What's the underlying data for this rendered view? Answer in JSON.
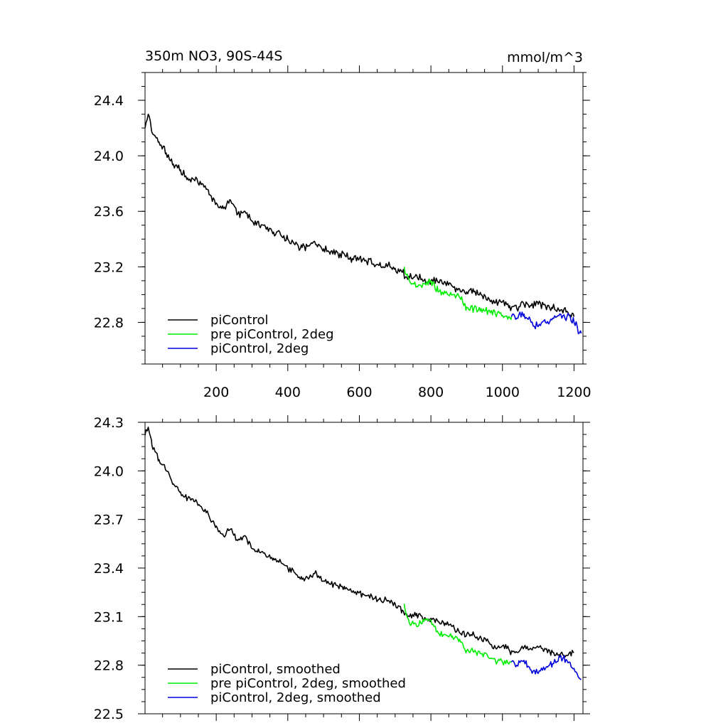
{
  "figure": {
    "title_left": "350m NO3, 90S-44S",
    "title_right": "mmol/m^3"
  },
  "chart_data": [
    {
      "type": "line",
      "panel": "top",
      "title": "350m NO3, 90S-44S",
      "units": "mmol/m^3",
      "xlim": [
        1,
        1225
      ],
      "ylim": [
        22.5,
        24.6
      ],
      "xticks": [
        200,
        400,
        600,
        800,
        1000,
        1200
      ],
      "yticks": [
        22.8,
        23.2,
        23.6,
        24.0,
        24.4
      ],
      "ytick_labels": [
        "22.8",
        "23.2",
        "23.6",
        "24.0",
        "24.4"
      ],
      "grid": false,
      "legend_position": "bottom-left",
      "series": [
        {
          "name": "piControl",
          "color": "#000000",
          "x": [
            1,
            10,
            20,
            40,
            60,
            80,
            100,
            120,
            140,
            160,
            180,
            200,
            220,
            240,
            260,
            280,
            300,
            320,
            340,
            360,
            380,
            400,
            420,
            440,
            460,
            480,
            500,
            520,
            540,
            560,
            580,
            600,
            620,
            640,
            660,
            680,
            700,
            720,
            740,
            760,
            780,
            800,
            820,
            840,
            860,
            880,
            900,
            920,
            940,
            960,
            980,
            1000,
            1020,
            1040,
            1060,
            1080,
            1100,
            1120,
            1140,
            1160,
            1180,
            1200
          ],
          "y": [
            24.2,
            24.3,
            24.17,
            24.1,
            24.02,
            23.94,
            23.9,
            23.84,
            23.82,
            23.8,
            23.72,
            23.66,
            23.62,
            23.68,
            23.58,
            23.6,
            23.53,
            23.5,
            23.47,
            23.45,
            23.43,
            23.4,
            23.36,
            23.34,
            23.35,
            23.36,
            23.33,
            23.31,
            23.3,
            23.28,
            23.26,
            23.26,
            23.24,
            23.22,
            23.2,
            23.21,
            23.19,
            23.16,
            23.12,
            23.14,
            23.1,
            23.1,
            23.09,
            23.09,
            23.06,
            23.04,
            23.02,
            23.02,
            23.0,
            22.98,
            22.94,
            22.95,
            22.92,
            22.9,
            22.93,
            22.92,
            22.93,
            22.92,
            22.9,
            22.88,
            22.88,
            22.84
          ]
        },
        {
          "name": "pre piControl, 2deg",
          "color": "#00ee00",
          "x": [
            725,
            740,
            760,
            780,
            800,
            820,
            840,
            860,
            880,
            900,
            920,
            940,
            960,
            980,
            1000,
            1025
          ],
          "y": [
            23.2,
            23.1,
            23.06,
            23.08,
            23.1,
            23.02,
            23.01,
            23.0,
            22.98,
            22.91,
            22.9,
            22.9,
            22.88,
            22.86,
            22.85,
            22.84
          ]
        },
        {
          "name": "piControl, 2deg",
          "color": "#0000dd",
          "x": [
            1025,
            1040,
            1060,
            1080,
            1100,
            1120,
            1140,
            1160,
            1180,
            1200,
            1220
          ],
          "y": [
            22.84,
            22.83,
            22.86,
            22.8,
            22.77,
            22.8,
            22.83,
            22.86,
            22.84,
            22.8,
            22.72
          ]
        }
      ]
    },
    {
      "type": "line",
      "panel": "bottom",
      "xlim": [
        1,
        1225
      ],
      "ylim": [
        22.5,
        24.3
      ],
      "xticks": [
        200,
        400,
        600,
        800,
        1000,
        1200
      ],
      "yticks": [
        22.5,
        22.8,
        23.1,
        23.4,
        23.7,
        24.0,
        24.3
      ],
      "ytick_labels": [
        "22.5",
        "22.8",
        "23.1",
        "23.4",
        "23.7",
        "24.0",
        "24.3"
      ],
      "grid": false,
      "legend_position": "bottom-left",
      "series": [
        {
          "name": "piControl, smoothed",
          "color": "#000000",
          "x": [
            1,
            10,
            20,
            40,
            60,
            80,
            100,
            120,
            140,
            160,
            180,
            200,
            220,
            240,
            260,
            280,
            300,
            320,
            340,
            360,
            380,
            400,
            420,
            440,
            460,
            480,
            500,
            520,
            540,
            560,
            580,
            600,
            620,
            640,
            660,
            680,
            700,
            720,
            740,
            760,
            780,
            800,
            820,
            840,
            860,
            880,
            900,
            920,
            940,
            960,
            980,
            1000,
            1020,
            1040,
            1060,
            1080,
            1100,
            1120,
            1140,
            1160,
            1180,
            1200
          ],
          "y": [
            24.22,
            24.27,
            24.16,
            24.07,
            24.0,
            23.92,
            23.87,
            23.83,
            23.81,
            23.77,
            23.72,
            23.66,
            23.6,
            23.64,
            23.57,
            23.6,
            23.52,
            23.5,
            23.47,
            23.46,
            23.44,
            23.4,
            23.37,
            23.33,
            23.34,
            23.37,
            23.32,
            23.3,
            23.29,
            23.27,
            23.25,
            23.25,
            23.23,
            23.21,
            23.2,
            23.2,
            23.18,
            23.14,
            23.1,
            23.12,
            23.08,
            23.09,
            23.07,
            23.06,
            23.04,
            23.0,
            22.99,
            22.99,
            22.97,
            22.95,
            22.91,
            22.92,
            22.89,
            22.88,
            22.91,
            22.9,
            22.91,
            22.9,
            22.88,
            22.86,
            22.86,
            22.88
          ]
        },
        {
          "name": "pre piControl, 2deg, smoothed",
          "color": "#00ee00",
          "x": [
            725,
            740,
            760,
            780,
            800,
            820,
            840,
            860,
            880,
            900,
            920,
            940,
            960,
            980,
            1000,
            1025
          ],
          "y": [
            23.18,
            23.06,
            23.04,
            23.07,
            23.08,
            23.0,
            22.99,
            22.98,
            22.96,
            22.89,
            22.88,
            22.87,
            22.85,
            22.83,
            22.82,
            22.82
          ]
        },
        {
          "name": "piControl, 2deg, smoothed",
          "color": "#0000dd",
          "x": [
            1025,
            1040,
            1060,
            1080,
            1100,
            1120,
            1140,
            1160,
            1180,
            1200,
            1220
          ],
          "y": [
            22.82,
            22.8,
            22.83,
            22.77,
            22.75,
            22.78,
            22.81,
            22.85,
            22.83,
            22.78,
            22.71
          ]
        }
      ]
    }
  ]
}
